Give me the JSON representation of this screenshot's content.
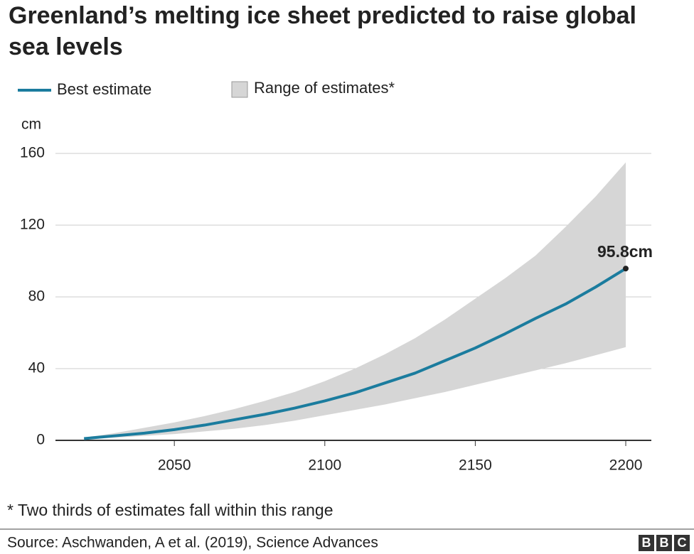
{
  "chart_data": {
    "type": "line",
    "title": "Greenland’s melting ice sheet predicted to raise global sea levels",
    "y_label": "cm",
    "x": [
      2020,
      2030,
      2040,
      2050,
      2060,
      2070,
      2080,
      2090,
      2100,
      2110,
      2120,
      2130,
      2140,
      2150,
      2160,
      2170,
      2180,
      2190,
      2200
    ],
    "series": [
      {
        "name": "Best estimate",
        "color": "#1b7c9e",
        "values": [
          1,
          2.5,
          4,
          6,
          8.5,
          11.5,
          14.5,
          18,
          22,
          26.5,
          32,
          37.5,
          44.5,
          51.5,
          59.5,
          68,
          76,
          85.5,
          95.8
        ],
        "value_labels": [
          null,
          null,
          null,
          null,
          null,
          null,
          null,
          null,
          null,
          null,
          null,
          null,
          null,
          null,
          null,
          null,
          null,
          null,
          "95.8cm"
        ]
      },
      {
        "name": "Range of estimates*",
        "color": "#d6d6d6",
        "lower": [
          0.5,
          1.5,
          2.5,
          3.5,
          5,
          6.5,
          8.5,
          11,
          14,
          17,
          20,
          23.5,
          27,
          31,
          35,
          39,
          43,
          47.5,
          52
        ],
        "upper": [
          1.5,
          4,
          7,
          10,
          13.5,
          17.5,
          22,
          27,
          33,
          40,
          48,
          57,
          67.5,
          79,
          90.5,
          103,
          119,
          136,
          155
        ]
      }
    ],
    "xlim": [
      2010.5,
      2208.5
    ],
    "xticks": [
      2050,
      2100,
      2150,
      2200
    ],
    "ylim": [
      0,
      160
    ],
    "yticks": [
      0,
      40,
      80,
      120,
      160
    ],
    "grid": true,
    "footnote": "* Two thirds of estimates fall within this range",
    "source": "Source: Aschwanden, A et al. (2019), Science Advances",
    "logo": [
      "B",
      "B",
      "C"
    ]
  }
}
